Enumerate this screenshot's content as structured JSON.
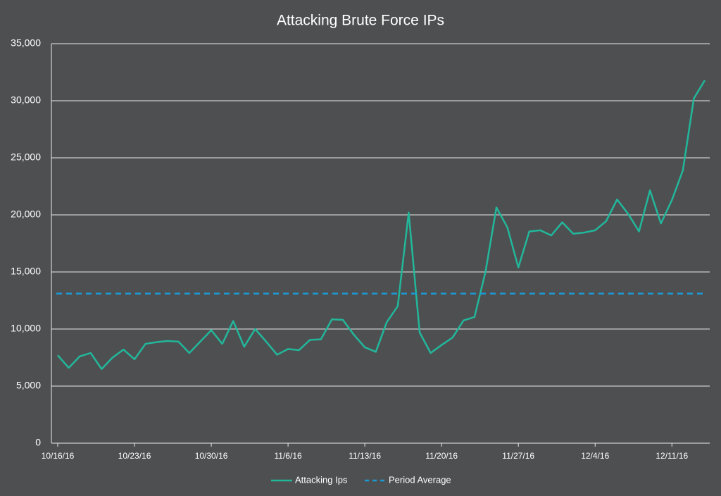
{
  "chart_data": {
    "type": "line",
    "title": "Attacking Brute Force IPs",
    "x": [
      "10/16/16",
      "10/17/16",
      "10/18/16",
      "10/19/16",
      "10/20/16",
      "10/21/16",
      "10/22/16",
      "10/23/16",
      "10/24/16",
      "10/25/16",
      "10/26/16",
      "10/27/16",
      "10/28/16",
      "10/29/16",
      "10/30/16",
      "10/31/16",
      "11/1/16",
      "11/2/16",
      "11/3/16",
      "11/4/16",
      "11/5/16",
      "11/6/16",
      "11/7/16",
      "11/8/16",
      "11/9/16",
      "11/10/16",
      "11/11/16",
      "11/12/16",
      "11/13/16",
      "11/14/16",
      "11/15/16",
      "11/16/16",
      "11/17/16",
      "11/18/16",
      "11/19/16",
      "11/20/16",
      "11/21/16",
      "11/22/16",
      "11/23/16",
      "11/24/16",
      "11/25/16",
      "11/26/16",
      "11/27/16",
      "11/28/16",
      "11/29/16",
      "11/30/16",
      "12/1/16",
      "12/2/16",
      "12/3/16",
      "12/4/16",
      "12/5/16",
      "12/6/16",
      "12/7/16",
      "12/8/16",
      "12/9/16",
      "12/10/16",
      "12/11/16",
      "12/12/16",
      "12/13/16",
      "12/14/16"
    ],
    "series": [
      {
        "name": "Attacking Ips",
        "color": "#22b79b",
        "values": [
          7700,
          6600,
          7600,
          7900,
          6500,
          7500,
          8200,
          7350,
          8700,
          8850,
          8950,
          8900,
          7900,
          8900,
          9900,
          8700,
          10700,
          8450,
          10000,
          8900,
          7750,
          8250,
          8150,
          9050,
          9100,
          10850,
          10800,
          9500,
          8400,
          8000,
          10600,
          12000,
          20200,
          9700,
          7900,
          8600,
          9250,
          10750,
          11050,
          15000,
          20650,
          18900,
          15400,
          18550,
          18650,
          18200,
          19350,
          18350,
          18450,
          18650,
          19450,
          21350,
          20100,
          18550,
          22150,
          19250,
          21300,
          23900,
          30200,
          31800
        ]
      }
    ],
    "reference_line": {
      "name": "Period Average",
      "color": "#1b9bd6",
      "value": 13100,
      "dashed": true
    },
    "ylim": [
      0,
      35000
    ],
    "yticks": [
      0,
      {
        "value": 5000,
        "label": "5,000"
      },
      {
        "value": 10000,
        "label": "10,000"
      },
      {
        "value": 15000,
        "label": "15,000"
      },
      {
        "value": 20000,
        "label": "20,000"
      },
      {
        "value": 25000,
        "label": "25,000"
      },
      {
        "value": 30000,
        "label": "30,000"
      },
      {
        "value": 35000,
        "label": "35,000"
      }
    ],
    "xticks": [
      "10/16/16",
      "10/23/16",
      "10/30/16",
      "11/6/16",
      "11/13/16",
      "11/20/16",
      "11/27/16",
      "12/4/16",
      "12/11/16"
    ],
    "grid": true,
    "legend": "bottom"
  }
}
